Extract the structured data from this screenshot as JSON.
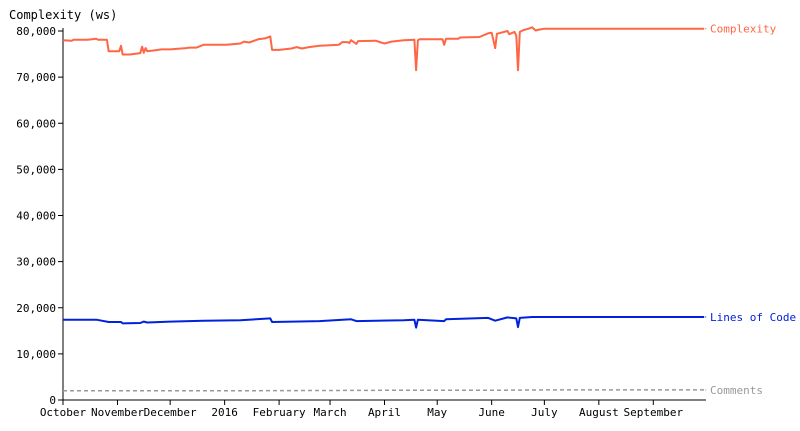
{
  "chart_data": {
    "type": "line",
    "ylabel": "Complexity (ws)",
    "ylim": [
      0,
      80000
    ],
    "yticks": [
      0,
      10000,
      20000,
      30000,
      40000,
      50000,
      60000,
      70000,
      80000
    ],
    "ytick_labels": [
      "0",
      "10,000",
      "20,000",
      "30,000",
      "40,000",
      "50,000",
      "60,000",
      "70,000",
      "80,000"
    ],
    "xlim": [
      "2015-10-01",
      "2016-09-30"
    ],
    "xticks": [
      {
        "date": "2015-10-01",
        "label": "October"
      },
      {
        "date": "2015-11-01",
        "label": "November"
      },
      {
        "date": "2015-12-01",
        "label": "December"
      },
      {
        "date": "2016-01-01",
        "label": "2016"
      },
      {
        "date": "2016-02-01",
        "label": "February"
      },
      {
        "date": "2016-03-01",
        "label": "March"
      },
      {
        "date": "2016-04-01",
        "label": "April"
      },
      {
        "date": "2016-05-01",
        "label": "May"
      },
      {
        "date": "2016-06-01",
        "label": "June"
      },
      {
        "date": "2016-07-01",
        "label": "July"
      },
      {
        "date": "2016-08-01",
        "label": "August"
      },
      {
        "date": "2016-09-01",
        "label": "September"
      }
    ],
    "series": [
      {
        "name": "Complexity",
        "color": "#ff6644",
        "style": "solid",
        "points": [
          [
            "2015-10-01",
            78000
          ],
          [
            "2015-10-06",
            77900
          ],
          [
            "2015-10-07",
            78100
          ],
          [
            "2015-10-15",
            78100
          ],
          [
            "2015-10-20",
            78300
          ],
          [
            "2015-10-21",
            78100
          ],
          [
            "2015-10-26",
            78100
          ],
          [
            "2015-10-27",
            75600
          ],
          [
            "2015-10-31",
            75600
          ],
          [
            "2015-11-01",
            75600
          ],
          [
            "2015-11-02",
            75600
          ],
          [
            "2015-11-03",
            76800
          ],
          [
            "2015-11-04",
            74900
          ],
          [
            "2015-11-07",
            74900
          ],
          [
            "2015-11-08",
            74900
          ],
          [
            "2015-11-14",
            75200
          ],
          [
            "2015-11-15",
            76600
          ],
          [
            "2015-11-16",
            75300
          ],
          [
            "2015-11-17",
            76300
          ],
          [
            "2015-11-18",
            75600
          ],
          [
            "2015-11-22",
            75800
          ],
          [
            "2015-11-26",
            76000
          ],
          [
            "2015-12-01",
            76000
          ],
          [
            "2015-12-10",
            76300
          ],
          [
            "2015-12-12",
            76400
          ],
          [
            "2015-12-16",
            76400
          ],
          [
            "2015-12-20",
            77000
          ],
          [
            "2015-12-24",
            77000
          ],
          [
            "2016-01-02",
            77000
          ],
          [
            "2016-01-10",
            77300
          ],
          [
            "2016-01-12",
            77700
          ],
          [
            "2016-01-15",
            77500
          ],
          [
            "2016-01-20",
            78200
          ],
          [
            "2016-01-24",
            78400
          ],
          [
            "2016-01-27",
            78800
          ],
          [
            "2016-01-28",
            75900
          ],
          [
            "2016-02-01",
            75900
          ],
          [
            "2016-02-08",
            76200
          ],
          [
            "2016-02-11",
            76500
          ],
          [
            "2016-02-14",
            76200
          ],
          [
            "2016-02-18",
            76500
          ],
          [
            "2016-02-24",
            76800
          ],
          [
            "2016-03-01",
            76900
          ],
          [
            "2016-03-06",
            77000
          ],
          [
            "2016-03-08",
            77600
          ],
          [
            "2016-03-11",
            77600
          ],
          [
            "2016-03-12",
            77400
          ],
          [
            "2016-03-13",
            78000
          ],
          [
            "2016-03-16",
            77200
          ],
          [
            "2016-03-17",
            77800
          ],
          [
            "2016-03-27",
            77900
          ],
          [
            "2016-03-30",
            77500
          ],
          [
            "2016-04-01",
            77300
          ],
          [
            "2016-04-05",
            77700
          ],
          [
            "2016-04-12",
            78000
          ],
          [
            "2016-04-18",
            78100
          ],
          [
            "2016-04-19",
            71500
          ],
          [
            "2016-04-20",
            78000
          ],
          [
            "2016-04-21",
            78200
          ],
          [
            "2016-05-01",
            78200
          ],
          [
            "2016-05-04",
            78200
          ],
          [
            "2016-05-05",
            77000
          ],
          [
            "2016-05-06",
            78300
          ],
          [
            "2016-05-13",
            78300
          ],
          [
            "2016-05-14",
            78600
          ],
          [
            "2016-05-25",
            78700
          ],
          [
            "2016-05-30",
            79500
          ],
          [
            "2016-06-01",
            79600
          ],
          [
            "2016-06-03",
            76300
          ],
          [
            "2016-06-04",
            79400
          ],
          [
            "2016-06-10",
            80000
          ],
          [
            "2016-06-11",
            79300
          ],
          [
            "2016-06-14",
            79800
          ],
          [
            "2016-06-15",
            79000
          ],
          [
            "2016-06-16",
            71500
          ],
          [
            "2016-06-17",
            79800
          ],
          [
            "2016-06-19",
            80200
          ],
          [
            "2016-06-22",
            80500
          ],
          [
            "2016-06-24",
            80800
          ],
          [
            "2016-06-26",
            80100
          ],
          [
            "2016-06-28",
            80300
          ],
          [
            "2016-07-01",
            80500
          ],
          [
            "2016-07-05",
            80500
          ],
          [
            "2016-08-01",
            80500
          ],
          [
            "2016-09-01",
            80500
          ],
          [
            "2016-09-30",
            80500
          ]
        ]
      },
      {
        "name": "Lines of Code",
        "color": "#0022dd",
        "style": "solid",
        "points": [
          [
            "2015-10-01",
            17400
          ],
          [
            "2015-10-20",
            17400
          ],
          [
            "2015-10-27",
            16900
          ],
          [
            "2015-11-03",
            16900
          ],
          [
            "2015-11-04",
            16600
          ],
          [
            "2015-11-14",
            16700
          ],
          [
            "2015-11-16",
            17000
          ],
          [
            "2015-11-18",
            16800
          ],
          [
            "2015-12-01",
            17000
          ],
          [
            "2015-12-20",
            17200
          ],
          [
            "2016-01-10",
            17300
          ],
          [
            "2016-01-27",
            17700
          ],
          [
            "2016-01-28",
            16900
          ],
          [
            "2016-02-24",
            17100
          ],
          [
            "2016-03-13",
            17500
          ],
          [
            "2016-03-16",
            17100
          ],
          [
            "2016-04-12",
            17300
          ],
          [
            "2016-04-18",
            17400
          ],
          [
            "2016-04-19",
            15700
          ],
          [
            "2016-04-20",
            17400
          ],
          [
            "2016-05-05",
            17100
          ],
          [
            "2016-05-06",
            17500
          ],
          [
            "2016-05-30",
            17800
          ],
          [
            "2016-06-03",
            17200
          ],
          [
            "2016-06-10",
            17900
          ],
          [
            "2016-06-15",
            17700
          ],
          [
            "2016-06-16",
            15800
          ],
          [
            "2016-06-17",
            17800
          ],
          [
            "2016-06-24",
            18000
          ],
          [
            "2016-07-01",
            18000
          ],
          [
            "2016-09-30",
            18000
          ]
        ]
      },
      {
        "name": "Comments",
        "color": "#999999",
        "style": "dashed",
        "points": [
          [
            "2015-10-01",
            2000
          ],
          [
            "2015-11-01",
            2000
          ],
          [
            "2016-01-01",
            2000
          ],
          [
            "2016-04-01",
            2100
          ],
          [
            "2016-06-01",
            2100
          ],
          [
            "2016-07-01",
            2200
          ],
          [
            "2016-09-30",
            2200
          ]
        ]
      }
    ]
  }
}
